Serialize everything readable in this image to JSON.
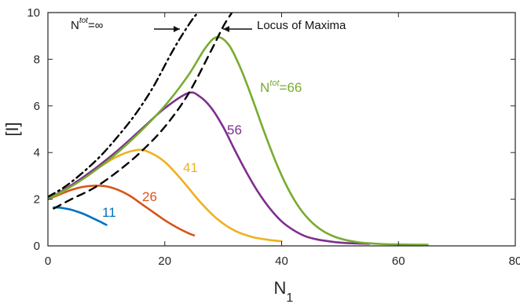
{
  "chart_data": {
    "type": "line",
    "xlabel": "N",
    "xlabel_subscript": "1",
    "ylabel": "[Ι]",
    "xlim": [
      0,
      80
    ],
    "ylim": [
      0,
      10
    ],
    "x_ticks": [
      0,
      20,
      40,
      60,
      80
    ],
    "y_ticks": [
      0,
      2,
      4,
      6,
      8,
      10
    ],
    "grid": false,
    "series": [
      {
        "name": "11",
        "label_text": "11",
        "color": "#0072BD",
        "x": [
          1,
          2,
          3,
          4,
          5,
          6,
          7,
          8,
          9,
          10
        ],
        "y": [
          1.65,
          1.64,
          1.6,
          1.55,
          1.47,
          1.38,
          1.27,
          1.15,
          1.03,
          0.9
        ]
      },
      {
        "name": "26",
        "label_text": "26",
        "color": "#D95319",
        "x": [
          0,
          2,
          4,
          6,
          8,
          10,
          12,
          14,
          16,
          18,
          20,
          22,
          24,
          25
        ],
        "y": [
          2.0,
          2.2,
          2.4,
          2.53,
          2.58,
          2.55,
          2.4,
          2.15,
          1.8,
          1.45,
          1.1,
          0.8,
          0.55,
          0.45
        ]
      },
      {
        "name": "41",
        "label_text": "41",
        "color": "#EDB120",
        "x": [
          0,
          3,
          6,
          9,
          12,
          15,
          17,
          20,
          23,
          26,
          29,
          32,
          35,
          38,
          40
        ],
        "y": [
          2.0,
          2.4,
          2.9,
          3.4,
          3.85,
          4.1,
          4.05,
          3.6,
          2.8,
          1.9,
          1.15,
          0.65,
          0.38,
          0.25,
          0.2
        ]
      },
      {
        "name": "56",
        "label_text": "56",
        "color": "#7E2F8E",
        "x": [
          0,
          4,
          8,
          12,
          16,
          20,
          24,
          26,
          28,
          30,
          32,
          34,
          36,
          38,
          40,
          42,
          44,
          46,
          48,
          50,
          52,
          55
        ],
        "y": [
          2.0,
          2.6,
          3.3,
          4.1,
          5.0,
          5.9,
          6.55,
          6.4,
          5.9,
          5.1,
          4.1,
          3.15,
          2.3,
          1.6,
          1.05,
          0.68,
          0.42,
          0.28,
          0.2,
          0.14,
          0.11,
          0.09
        ]
      },
      {
        "name": "Ntot=66",
        "label_text": "=66",
        "label_prefix": "N",
        "label_superscript": "tot",
        "color": "#77AC30",
        "x": [
          0,
          5,
          10,
          15,
          20,
          24,
          27,
          29,
          31,
          33,
          35,
          37,
          39,
          41,
          43,
          45,
          47,
          49,
          51,
          53,
          55,
          57,
          60,
          65
        ],
        "y": [
          2.0,
          2.7,
          3.6,
          4.7,
          6.0,
          7.3,
          8.5,
          8.95,
          8.6,
          7.6,
          6.3,
          4.9,
          3.6,
          2.5,
          1.65,
          1.05,
          0.65,
          0.4,
          0.25,
          0.16,
          0.11,
          0.08,
          0.06,
          0.05
        ]
      },
      {
        "name": "Ntot=∞",
        "color": "#000000",
        "line_style": "dash-dot",
        "x": [
          0,
          3,
          6,
          9,
          12,
          15,
          18,
          21,
          23,
          25,
          25.8
        ],
        "y": [
          2.1,
          2.55,
          3.15,
          3.85,
          4.7,
          5.65,
          6.8,
          8.2,
          9.05,
          9.8,
          10.0
        ]
      },
      {
        "name": "Locus of Maxima",
        "color": "#000000",
        "line_style": "dash",
        "x": [
          1,
          4,
          8,
          12,
          16,
          20,
          24,
          28,
          30,
          31.5
        ],
        "y": [
          1.6,
          2.0,
          2.5,
          3.2,
          4.05,
          5.1,
          6.5,
          8.4,
          9.4,
          10.0
        ]
      }
    ],
    "annotations": [
      {
        "id": "ninf",
        "prefix": "N",
        "superscript": "tot",
        "text": "=∞",
        "arrow": "→"
      },
      {
        "id": "locus",
        "text": "Locus of Maxima",
        "arrow": "←"
      }
    ]
  }
}
